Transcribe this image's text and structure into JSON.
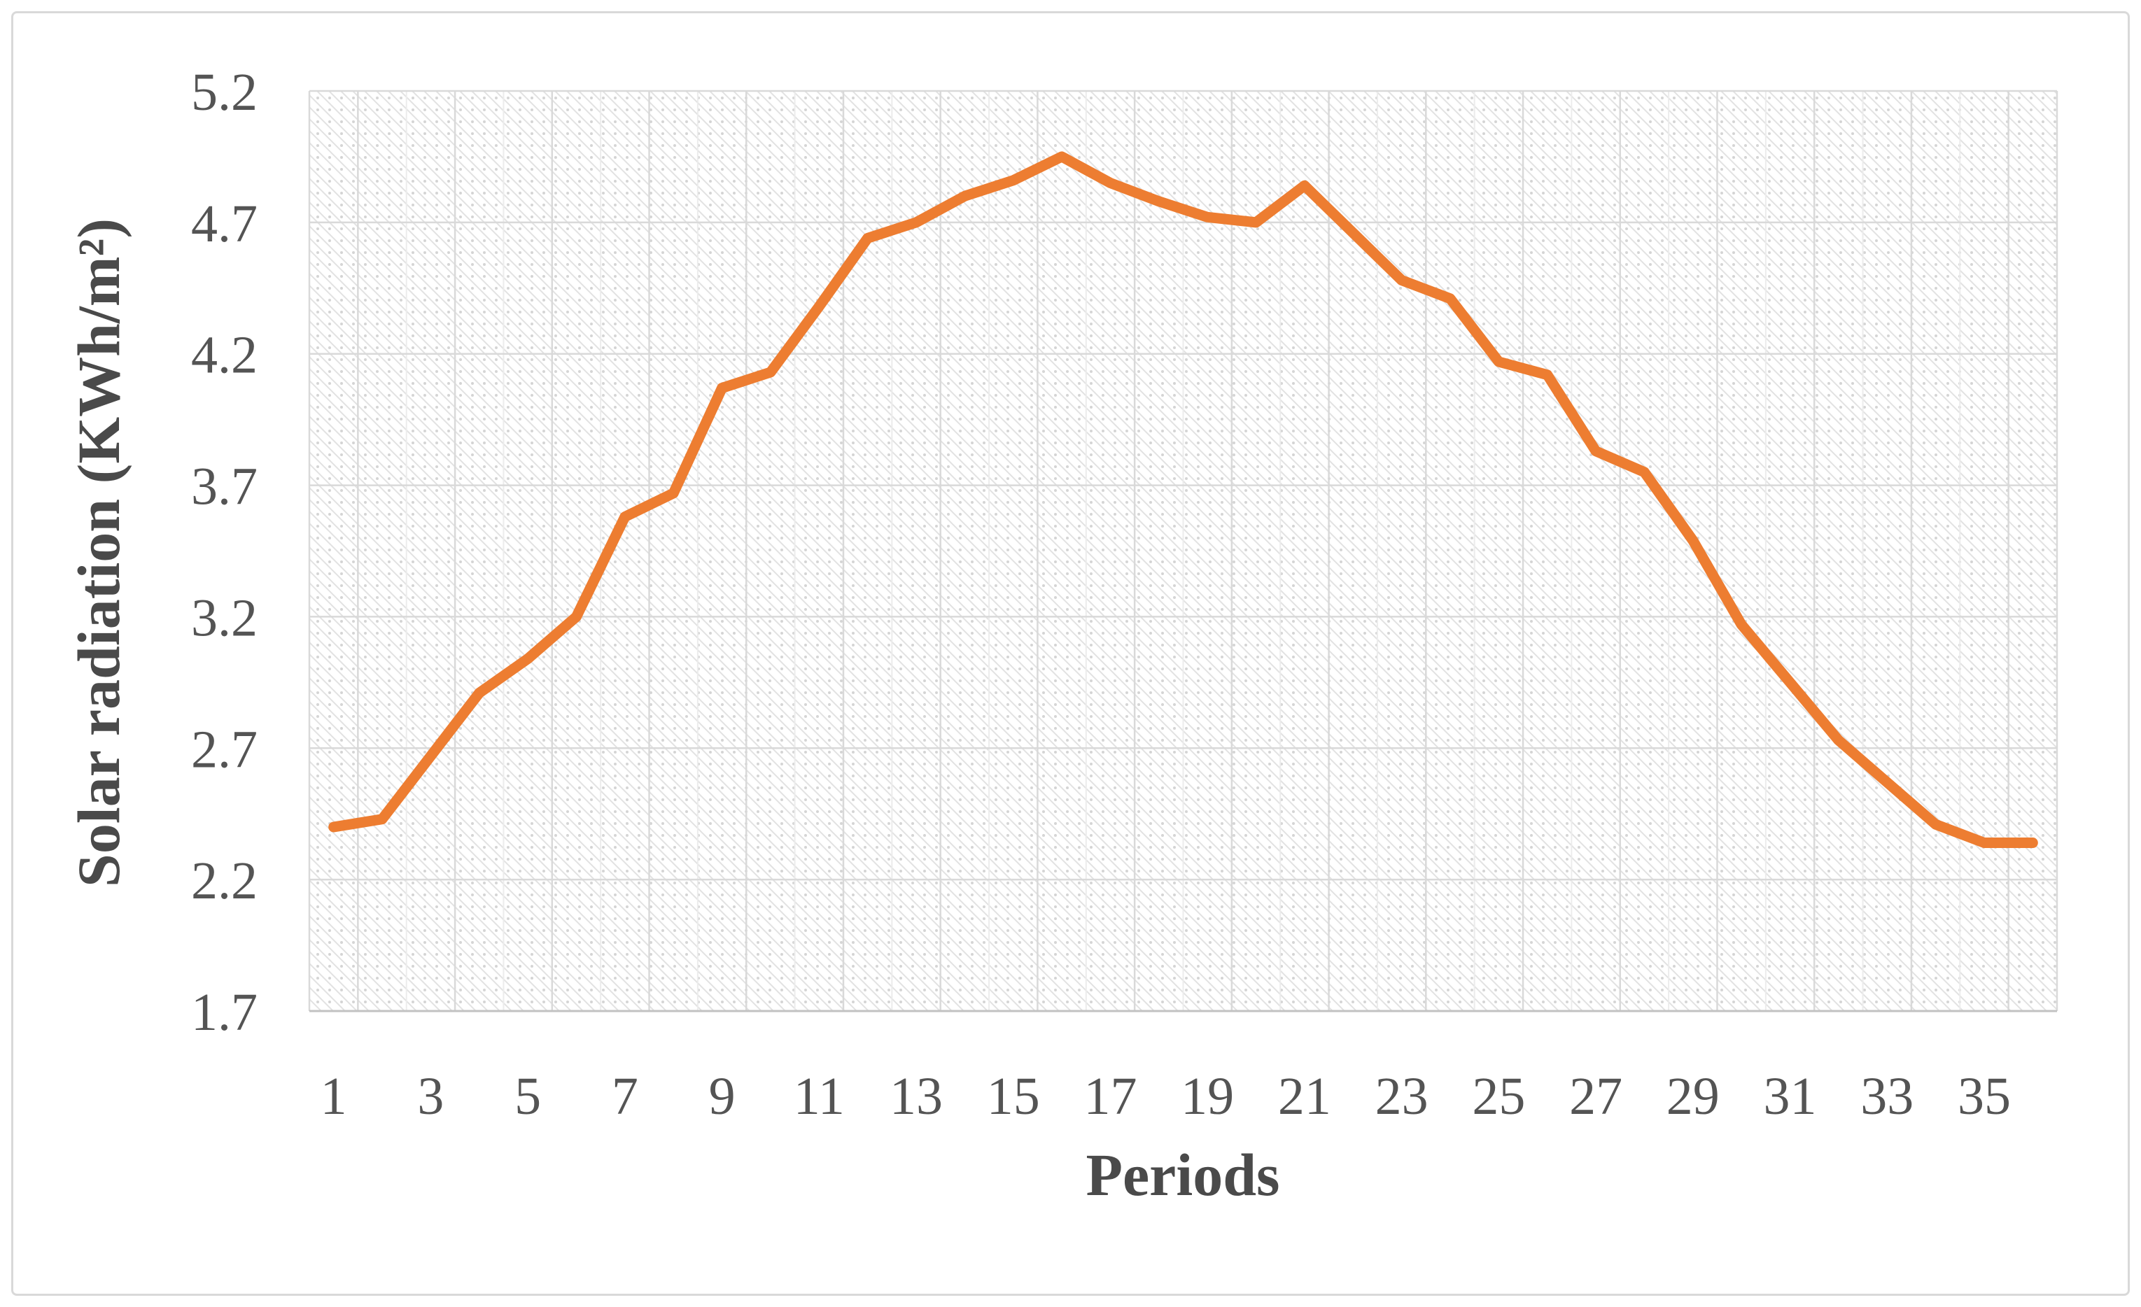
{
  "figure": {
    "background": "#FFFFFF",
    "border_color": "#D9D9D9"
  },
  "chart_data": {
    "type": "line",
    "title": "",
    "xlabel": "Periods",
    "ylabel": "Solar radiation (KWh/m²)",
    "x": [
      1,
      2,
      3,
      4,
      5,
      6,
      7,
      8,
      9,
      10,
      11,
      12,
      13,
      14,
      15,
      16,
      17,
      18,
      19,
      20,
      21,
      22,
      23,
      24,
      25,
      26,
      27,
      28,
      29,
      30,
      31,
      32,
      33,
      34,
      35,
      36
    ],
    "values": [
      2.4,
      2.43,
      2.67,
      2.91,
      3.04,
      3.2,
      3.58,
      3.67,
      4.07,
      4.13,
      4.38,
      4.64,
      4.7,
      4.8,
      4.86,
      4.95,
      4.85,
      4.78,
      4.72,
      4.7,
      4.84,
      4.66,
      4.48,
      4.41,
      4.17,
      4.12,
      3.83,
      3.75,
      3.49,
      3.17,
      2.95,
      2.73,
      2.57,
      2.41,
      2.34,
      2.34
    ],
    "ylim": [
      1.7,
      5.2
    ],
    "ytick_step": 0.5,
    "ytick_labels": [
      "5.2",
      "4.7",
      "4.2",
      "3.7",
      "3.2",
      "2.7",
      "2.2",
      "1.7"
    ],
    "xtick_labels": [
      "1",
      "3",
      "5",
      "7",
      "9",
      "11",
      "13",
      "15",
      "17",
      "19",
      "21",
      "23",
      "25",
      "27",
      "29",
      "31",
      "33",
      "35"
    ],
    "legend": "none",
    "grid": "horizontal majors every 0.5; vertical minor per period, major every 2 periods; hatched plot background",
    "line_color": "#ED7D31",
    "gridline_color": "#D9D9D9",
    "minor_gridline_color": "#ECECEC",
    "axis_line_color": "#C2C2C2",
    "hatch_line_color": "#E2E2E2",
    "hatch_dot_color": "#D5D5D5",
    "tick_label_color": "#545454",
    "axis_title_color": "#4A4A4A"
  }
}
